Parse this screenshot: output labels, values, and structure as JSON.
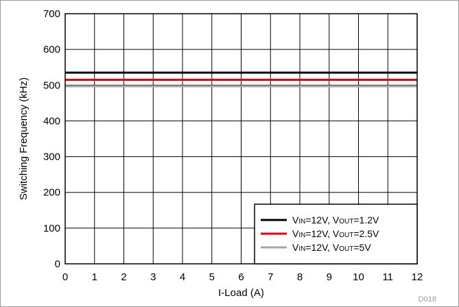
{
  "chart_data": {
    "type": "line",
    "xlabel": "I-Load (A)",
    "ylabel": "Switching Frequency (kHz)",
    "xlim": [
      0,
      12
    ],
    "ylim": [
      0,
      700
    ],
    "x_ticks": [
      0,
      1,
      2,
      3,
      4,
      5,
      6,
      7,
      8,
      9,
      10,
      11,
      12
    ],
    "y_ticks": [
      0,
      100,
      200,
      300,
      400,
      500,
      600,
      700
    ],
    "grid": true,
    "legend_position": "bottom-right",
    "series": [
      {
        "name": "VIN=12V, VOUT=1.2V",
        "legend": [
          [
            "V",
            ""
          ],
          [
            "IN",
            "sub"
          ],
          [
            "=12V, V",
            ""
          ],
          [
            "OUT",
            "sub"
          ],
          [
            "=1.2V",
            ""
          ]
        ],
        "color": "#000000",
        "x": [
          0,
          12
        ],
        "y": [
          535,
          535
        ]
      },
      {
        "name": "VIN=12V, VOUT=2.5V",
        "legend": [
          [
            "V",
            ""
          ],
          [
            "IN",
            "sub"
          ],
          [
            "=12V, V",
            ""
          ],
          [
            "OUT",
            "sub"
          ],
          [
            "=2.5V",
            ""
          ]
        ],
        "color": "#e8000b",
        "x": [
          0,
          12
        ],
        "y": [
          515,
          515
        ]
      },
      {
        "name": "VIN=12V, VOUT=5V",
        "legend": [
          [
            "V",
            ""
          ],
          [
            "IN",
            "sub"
          ],
          [
            "=12V, V",
            ""
          ],
          [
            "OUT",
            "sub"
          ],
          [
            "=5V",
            ""
          ]
        ],
        "color": "#a6a6a6",
        "x": [
          0,
          12
        ],
        "y": [
          497,
          497
        ]
      }
    ],
    "figure_id": "D018"
  }
}
